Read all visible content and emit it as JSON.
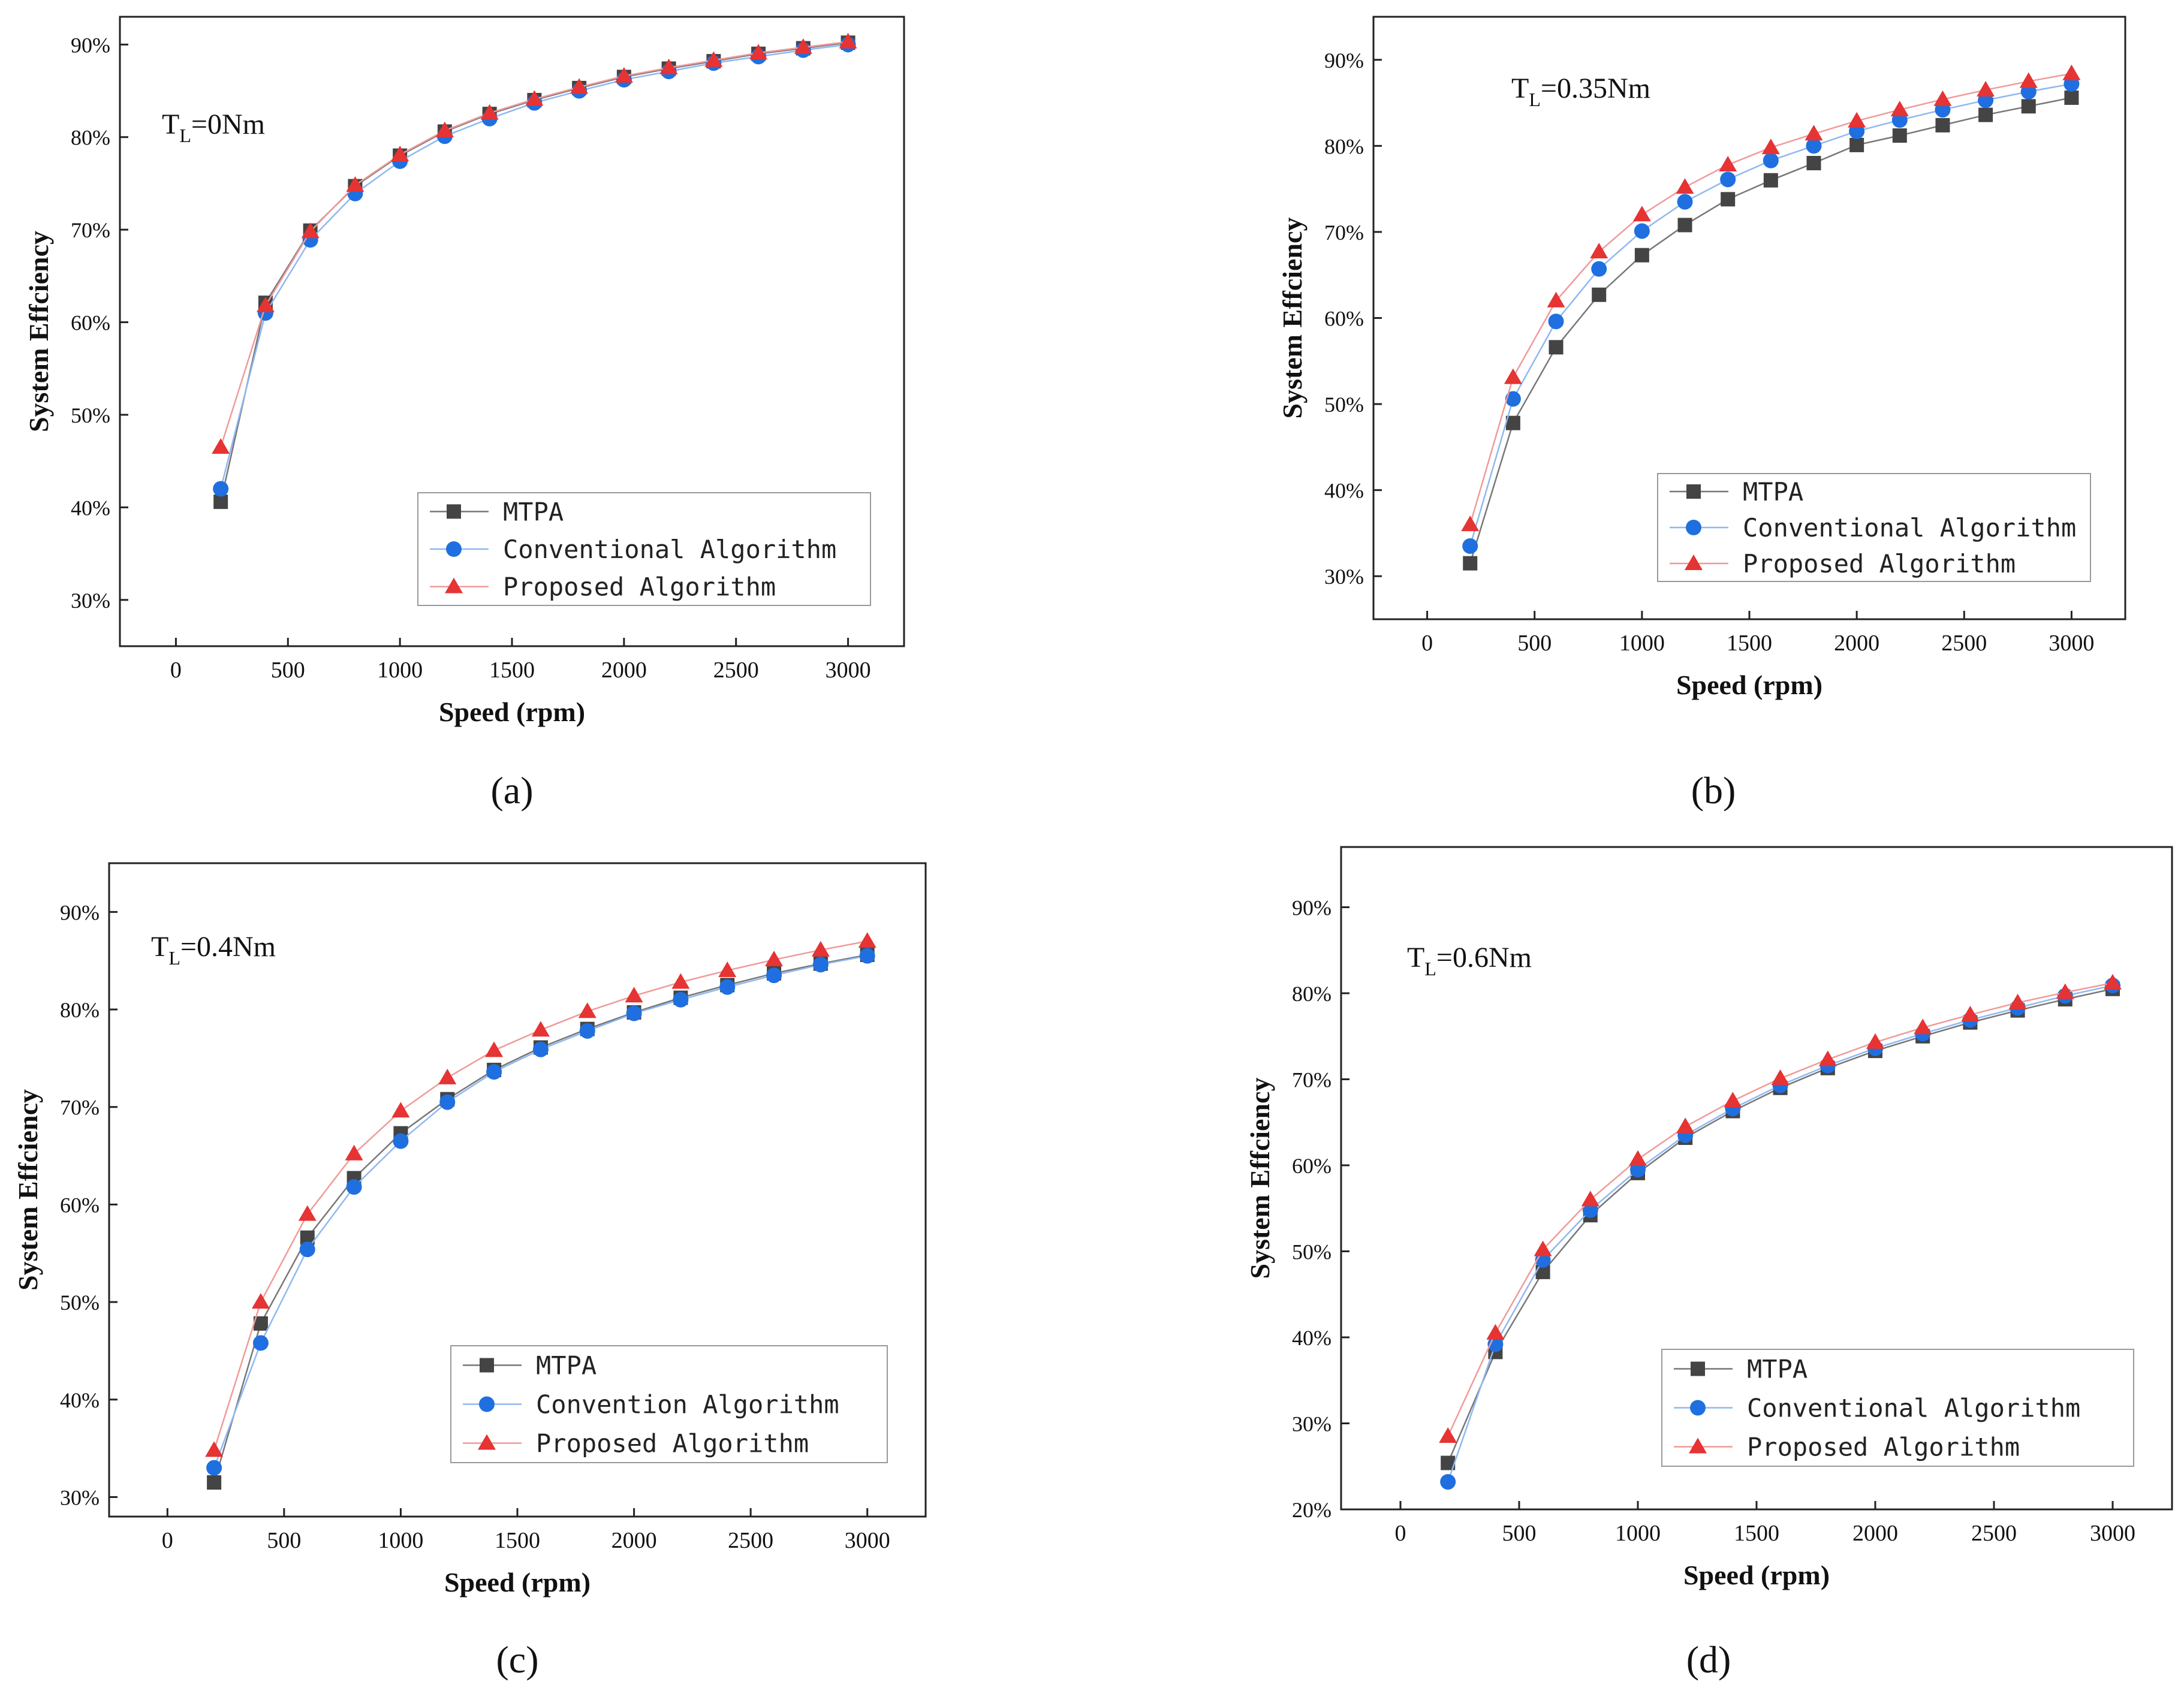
{
  "colors": {
    "mtpa": "#444444",
    "conventional": "#1f6fe0",
    "proposed": "#e63333",
    "mtpa_line": "#777777",
    "conventional_line": "#8fb8f0",
    "proposed_line": "#f09a9a",
    "axis": "#222222"
  },
  "chart_data": [
    {
      "type": "line",
      "panel_label": "(a)",
      "annotation": {
        "main": "T",
        "sub": "L",
        "rest": "=0Nm"
      },
      "xlabel": "Speed (rpm)",
      "ylabel": "System Effciency",
      "xlim": [
        -250,
        3250
      ],
      "ylim": [
        25,
        93
      ],
      "xticks": [
        0,
        500,
        1000,
        1500,
        2000,
        2500,
        3000
      ],
      "xtick_labels": [
        "0",
        "500",
        "1000",
        "1500",
        "2000",
        "2500",
        "3000"
      ],
      "yticks": [
        30,
        40,
        50,
        60,
        70,
        80,
        90
      ],
      "ytick_labels": [
        "30%",
        "40%",
        "50%",
        "60%",
        "70%",
        "80%",
        "90%"
      ],
      "x": [
        200,
        400,
        600,
        800,
        1000,
        1200,
        1400,
        1600,
        1800,
        2000,
        2200,
        2400,
        2600,
        2800,
        3000
      ],
      "series": [
        {
          "name": "MTPA",
          "marker": "square",
          "values": [
            40.6,
            62.1,
            69.9,
            74.7,
            78.0,
            80.6,
            82.5,
            84.0,
            85.3,
            86.5,
            87.4,
            88.2,
            89.0,
            89.6,
            90.2
          ]
        },
        {
          "name": "Conventional Algorithm",
          "marker": "circle",
          "values": [
            42.0,
            61.0,
            68.9,
            73.9,
            77.4,
            80.1,
            82.0,
            83.7,
            85.0,
            86.2,
            87.1,
            88.0,
            88.7,
            89.4,
            90.0
          ]
        },
        {
          "name": "Proposed Algorithm",
          "marker": "triangle",
          "values": [
            46.5,
            61.8,
            69.8,
            74.8,
            78.1,
            80.7,
            82.6,
            84.1,
            85.4,
            86.6,
            87.5,
            88.3,
            89.1,
            89.7,
            90.3
          ]
        }
      ],
      "legend": "bottom-right"
    },
    {
      "type": "line",
      "panel_label": "(b)",
      "annotation": {
        "main": "T",
        "sub": "L",
        "rest": "=0.35Nm"
      },
      "xlabel": "Speed (rpm)",
      "ylabel": "System Effciency",
      "xlim": [
        -250,
        3250
      ],
      "ylim": [
        25,
        95
      ],
      "xticks": [
        0,
        500,
        1000,
        1500,
        2000,
        2500,
        3000
      ],
      "xtick_labels": [
        "0",
        "500",
        "1000",
        "1500",
        "2000",
        "2500",
        "3000"
      ],
      "yticks": [
        30,
        40,
        50,
        60,
        70,
        80,
        90
      ],
      "ytick_labels": [
        "30%",
        "40%",
        "50%",
        "60%",
        "70%",
        "80%",
        "90%"
      ],
      "x": [
        200,
        400,
        600,
        800,
        1000,
        1200,
        1400,
        1600,
        1800,
        2000,
        2200,
        2400,
        2600,
        2800,
        3000
      ],
      "series": [
        {
          "name": "MTPA",
          "marker": "square",
          "values": [
            31.5,
            47.8,
            56.6,
            62.7,
            67.3,
            70.8,
            73.8,
            76.0,
            78.0,
            80.1,
            81.2,
            82.4,
            83.6,
            84.6,
            85.6
          ]
        },
        {
          "name": "Conventional Algorithm",
          "marker": "circle",
          "values": [
            33.5,
            50.6,
            59.6,
            65.7,
            70.1,
            73.5,
            76.1,
            78.3,
            80.0,
            81.7,
            83.0,
            84.2,
            85.3,
            86.3,
            87.2
          ]
        },
        {
          "name": "Proposed Algorithm",
          "marker": "triangle",
          "values": [
            36.0,
            53.1,
            62.0,
            67.7,
            72.0,
            75.2,
            77.8,
            79.8,
            81.4,
            82.9,
            84.2,
            85.4,
            86.5,
            87.5,
            88.4
          ]
        }
      ],
      "legend": "bottom-right"
    },
    {
      "type": "line",
      "panel_label": "(c)",
      "annotation": {
        "main": "T",
        "sub": "L",
        "rest": "=0.4Nm"
      },
      "xlabel": "Speed (rpm)",
      "ylabel": "System Effciency",
      "xlim": [
        -250,
        3250
      ],
      "ylim": [
        28,
        95
      ],
      "xticks": [
        0,
        500,
        1000,
        1500,
        2000,
        2500,
        3000
      ],
      "xtick_labels": [
        "0",
        "500",
        "1000",
        "1500",
        "2000",
        "2500",
        "3000"
      ],
      "yticks": [
        30,
        40,
        50,
        60,
        70,
        80,
        90
      ],
      "ytick_labels": [
        "30%",
        "40%",
        "50%",
        "60%",
        "70%",
        "80%",
        "90%"
      ],
      "x": [
        200,
        400,
        600,
        800,
        1000,
        1200,
        1400,
        1600,
        1800,
        2000,
        2200,
        2400,
        2600,
        2800,
        3000
      ],
      "series": [
        {
          "name": "MTPA",
          "marker": "square",
          "values": [
            31.5,
            47.8,
            56.6,
            62.7,
            67.3,
            70.8,
            73.8,
            76.1,
            78.0,
            79.7,
            81.2,
            82.5,
            83.7,
            84.7,
            85.6
          ]
        },
        {
          "name": "Convention Algorithm",
          "marker": "circle",
          "values": [
            33.0,
            45.8,
            55.4,
            61.8,
            66.5,
            70.5,
            73.6,
            75.9,
            77.8,
            79.6,
            81.0,
            82.3,
            83.5,
            84.6,
            85.5
          ]
        },
        {
          "name": "Proposed Algorithm",
          "marker": "triangle",
          "values": [
            34.8,
            50.0,
            59.0,
            65.2,
            69.6,
            73.0,
            75.8,
            77.9,
            79.8,
            81.4,
            82.8,
            84.0,
            85.1,
            86.1,
            87.0
          ]
        }
      ],
      "legend": "bottom-right"
    },
    {
      "type": "line",
      "panel_label": "(d)",
      "annotation": {
        "main": "T",
        "sub": "L",
        "rest": "=0.6Nm"
      },
      "xlabel": "Speed (rpm)",
      "ylabel": "System Effciency",
      "xlim": [
        -250,
        3250
      ],
      "ylim": [
        20,
        97
      ],
      "xticks": [
        0,
        500,
        1000,
        1500,
        2000,
        2500,
        3000
      ],
      "xtick_labels": [
        "0",
        "500",
        "1000",
        "1500",
        "2000",
        "2500",
        "3000"
      ],
      "yticks": [
        20,
        30,
        40,
        50,
        60,
        70,
        80,
        90
      ],
      "ytick_labels": [
        "20%",
        "30%",
        "40%",
        "50%",
        "60%",
        "70%",
        "80%",
        "90%"
      ],
      "x": [
        200,
        400,
        600,
        800,
        1000,
        1200,
        1400,
        1600,
        1800,
        2000,
        2200,
        2400,
        2600,
        2800,
        3000
      ],
      "series": [
        {
          "name": "MTPA",
          "marker": "square",
          "values": [
            25.4,
            38.3,
            47.6,
            54.2,
            59.1,
            63.2,
            66.3,
            69.0,
            71.3,
            73.3,
            75.0,
            76.6,
            78.0,
            79.3,
            80.5
          ]
        },
        {
          "name": "Conventional Algorithm",
          "marker": "circle",
          "values": [
            23.2,
            39.2,
            49.0,
            54.8,
            59.5,
            63.5,
            66.6,
            69.3,
            71.6,
            73.6,
            75.3,
            76.9,
            78.3,
            79.7,
            80.9
          ]
        },
        {
          "name": "Proposed Algorithm",
          "marker": "triangle",
          "values": [
            28.5,
            40.5,
            50.2,
            56.0,
            60.7,
            64.5,
            67.5,
            70.1,
            72.3,
            74.3,
            76.0,
            77.5,
            78.9,
            80.1,
            81.2
          ]
        }
      ],
      "legend": "bottom-right"
    }
  ]
}
